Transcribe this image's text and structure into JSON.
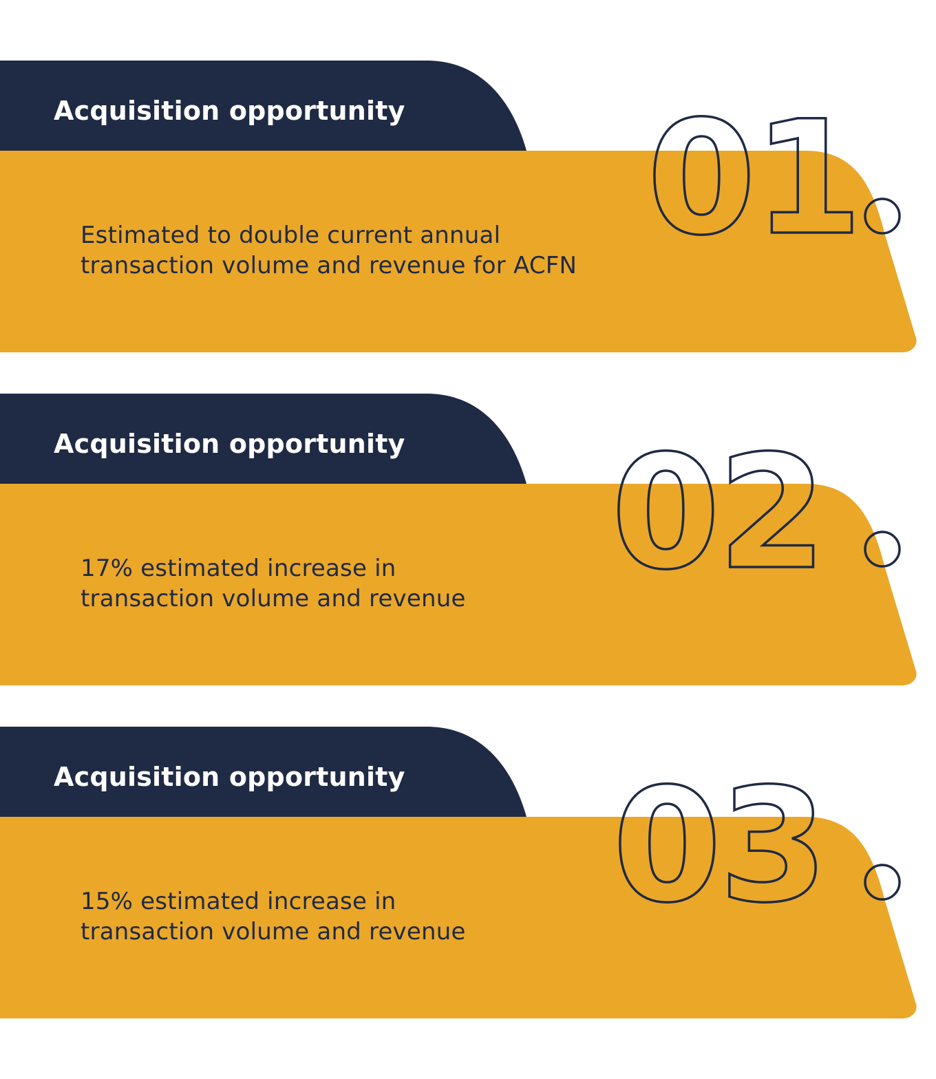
{
  "colors": {
    "navy": "#1f2a44",
    "gold": "#eba728",
    "white": "#ffffff"
  },
  "cards": [
    {
      "title": "Acquisition opportunity",
      "number": "01",
      "text_lines": [
        "Estimated to double current annual",
        "transaction volume and revenue for ACFN"
      ]
    },
    {
      "title": "Acquisition opportunity",
      "number": "02",
      "text_lines": [
        "17% estimated increase in",
        "transaction volume and revenue"
      ]
    },
    {
      "title": "Acquisition opportunity",
      "number": "03",
      "text_lines": [
        "15% estimated increase in",
        "transaction volume and revenue"
      ]
    }
  ]
}
